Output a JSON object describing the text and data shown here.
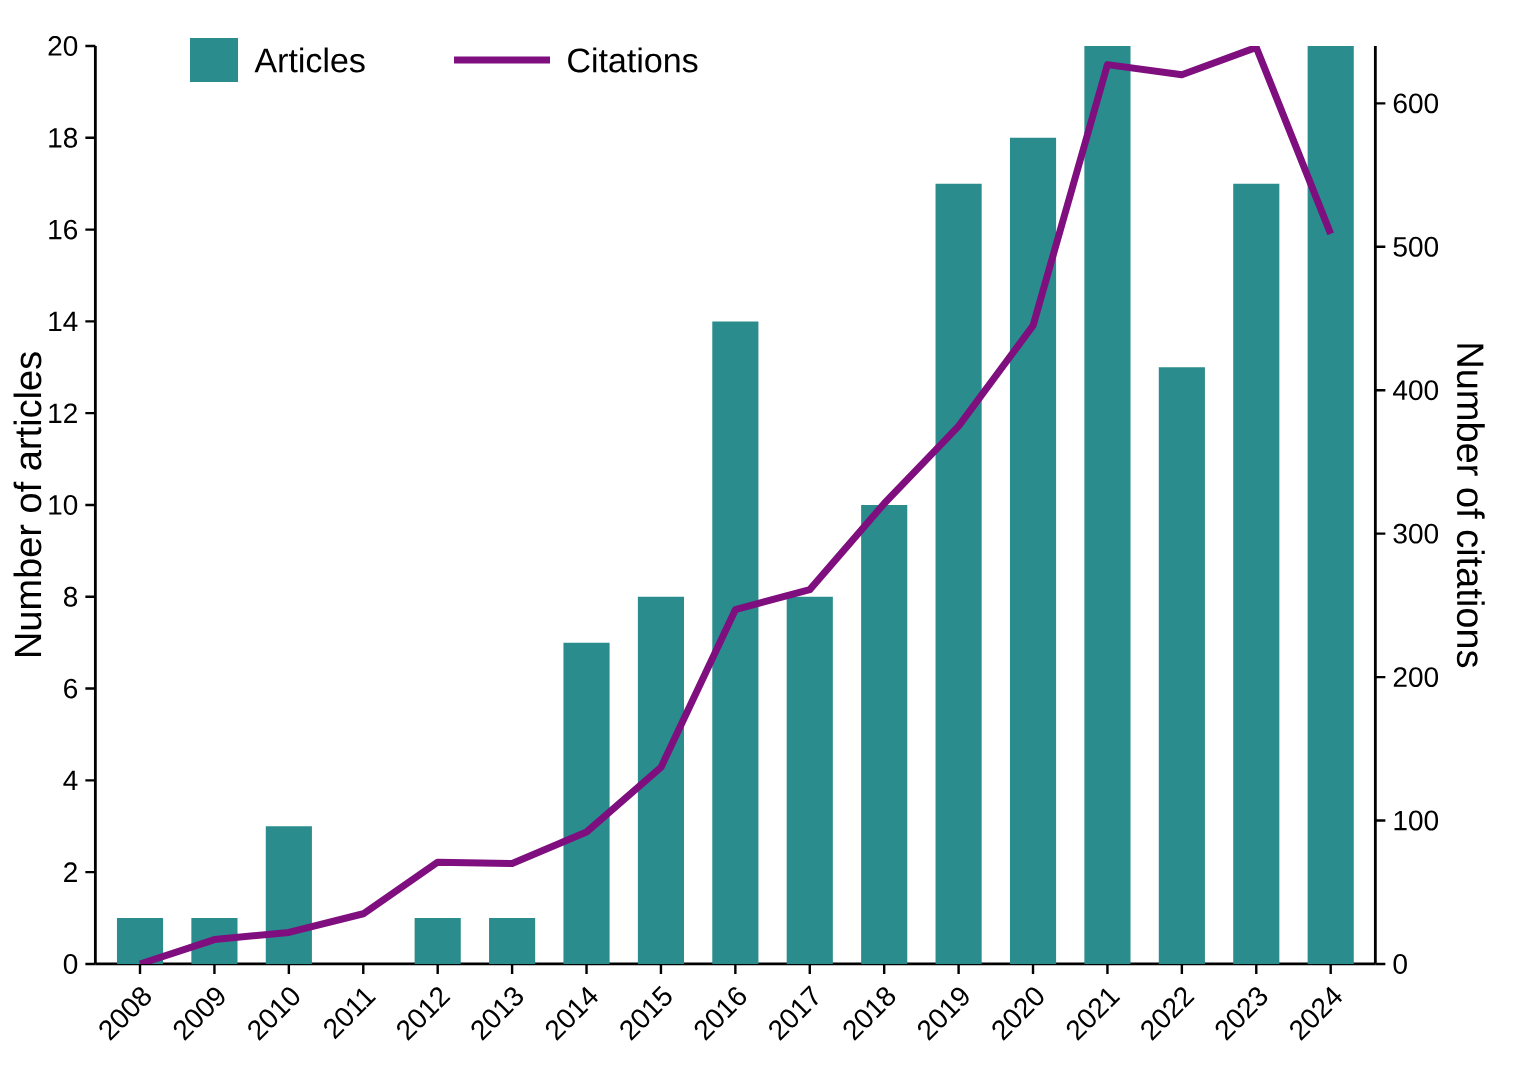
{
  "chart_data": {
    "type": "bar",
    "categories": [
      "2008",
      "2009",
      "2010",
      "2011",
      "2012",
      "2013",
      "2014",
      "2015",
      "2016",
      "2017",
      "2018",
      "2019",
      "2020",
      "2021",
      "2022",
      "2023",
      "2024"
    ],
    "series": [
      {
        "name": "Articles",
        "color": "#2a8c8c",
        "values": [
          1,
          1,
          3,
          0,
          1,
          1,
          7,
          8,
          14,
          8,
          10,
          17,
          18,
          20,
          13,
          17,
          20
        ]
      },
      {
        "name": "Citations",
        "type": "line",
        "axis": "y2",
        "color": "#7f0f7f",
        "values": [
          0,
          17,
          22,
          35,
          71,
          70,
          92,
          137,
          247,
          261,
          321,
          375,
          445,
          627,
          620,
          639,
          509
        ]
      }
    ],
    "ylim": [
      0,
      20
    ],
    "yticks": [
      0,
      2,
      4,
      6,
      8,
      10,
      12,
      14,
      16,
      18,
      20
    ],
    "y2lim": [
      0,
      640
    ],
    "y2ticks": [
      0,
      100,
      200,
      300,
      400,
      500,
      600
    ],
    "ylabel": "Number of articles",
    "y2label": "Number of citations",
    "legend": "top left"
  }
}
